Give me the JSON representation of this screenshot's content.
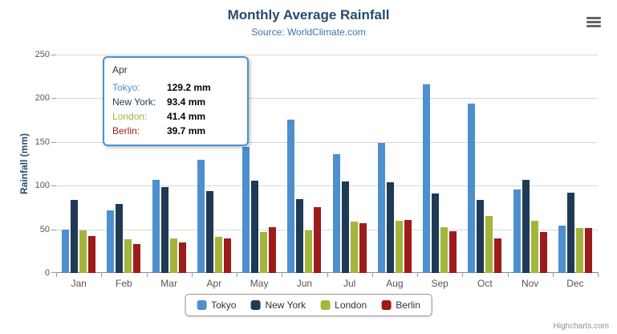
{
  "chart_data": {
    "type": "bar",
    "title": "Monthly Average Rainfall",
    "subtitle": "Source: WorldClimate.com",
    "ylabel": "Rainfall (mm)",
    "xlabel": "",
    "ylim": [
      0,
      250
    ],
    "yticks": [
      0,
      50,
      100,
      150,
      200,
      250
    ],
    "grid": true,
    "legend_position": "bottom",
    "categories": [
      "Jan",
      "Feb",
      "Mar",
      "Apr",
      "May",
      "Jun",
      "Jul",
      "Aug",
      "Sep",
      "Oct",
      "Nov",
      "Dec"
    ],
    "series": [
      {
        "name": "Tokyo",
        "color": "#4e8fce",
        "values": [
          49.9,
          71.5,
          106.4,
          129.2,
          144.0,
          176.0,
          135.6,
          148.5,
          216.4,
          194.1,
          95.6,
          54.4
        ]
      },
      {
        "name": "New York",
        "color": "#1e3a54",
        "values": [
          83.6,
          78.8,
          98.5,
          93.4,
          106.0,
          84.5,
          105.0,
          104.3,
          91.2,
          83.5,
          106.6,
          92.3
        ]
      },
      {
        "name": "London",
        "color": "#a3b53c",
        "values": [
          48.9,
          38.8,
          39.3,
          41.4,
          47.0,
          48.3,
          59.0,
          59.6,
          52.4,
          65.2,
          59.3,
          51.2
        ]
      },
      {
        "name": "Berlin",
        "color": "#9d1b1b",
        "values": [
          42.4,
          33.2,
          34.5,
          39.7,
          52.6,
          75.5,
          57.4,
          60.4,
          47.6,
          39.1,
          46.8,
          51.1
        ]
      }
    ]
  },
  "tooltip": {
    "header": "Apr",
    "rows": [
      {
        "label": "Tokyo:",
        "value": "129.2 mm",
        "color": "#4e8fce"
      },
      {
        "label": "New York:",
        "value": "93.4 mm",
        "color": "#1e3a54"
      },
      {
        "label": "London:",
        "value": "41.4 mm",
        "color": "#a3b53c"
      },
      {
        "label": "Berlin:",
        "value": "39.7 mm",
        "color": "#9d1b1b"
      }
    ]
  },
  "icons": {
    "export_menu": "hamburger-menu-icon"
  },
  "credits": "Highcharts.com"
}
